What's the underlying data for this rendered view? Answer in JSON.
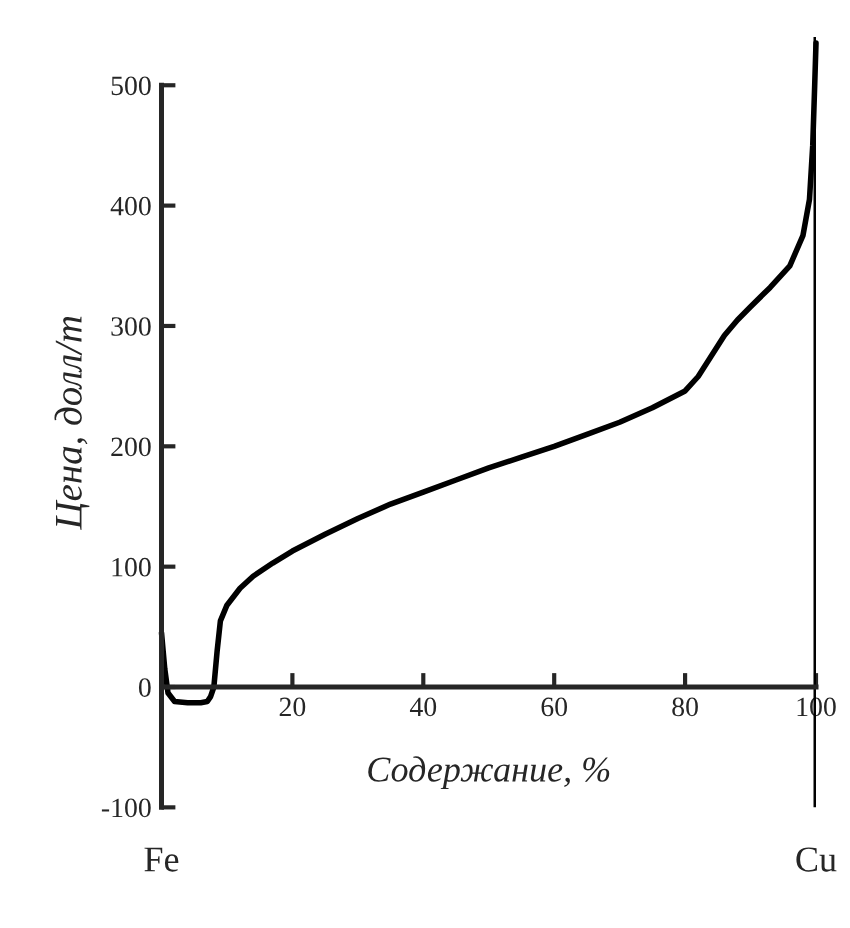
{
  "chart_data": {
    "type": "line",
    "xlabel": "Содержание, %",
    "ylabel": "Цена, долл/т",
    "x": [
      0,
      0.5,
      1,
      2,
      4,
      6,
      7,
      7.5,
      8,
      8.5,
      9,
      10,
      12,
      14,
      17,
      20,
      25,
      30,
      35,
      40,
      45,
      50,
      55,
      60,
      65,
      70,
      75,
      80,
      82,
      84,
      86,
      88,
      90,
      93,
      96,
      98,
      99,
      99.5,
      99.8,
      100
    ],
    "series": [
      {
        "color": "#000000",
        "values": [
          45,
          15,
          -5,
          -12,
          -13,
          -13,
          -12,
          -8,
          0,
          30,
          55,
          68,
          82,
          92,
          103,
          113,
          127,
          140,
          152,
          162,
          172,
          182,
          191,
          200,
          210,
          220,
          232,
          246,
          258,
          275,
          292,
          305,
          316,
          332,
          350,
          375,
          405,
          450,
          500,
          535
        ]
      }
    ],
    "xlim": [
      0,
      100
    ],
    "ylim": [
      -100,
      540
    ],
    "xticks": [
      20,
      40,
      60,
      80,
      100
    ],
    "yticks": [
      -100,
      0,
      100,
      200,
      300,
      400,
      500
    ],
    "ref_lines": [
      {
        "axis": "x",
        "value": 100,
        "color": "#000000"
      }
    ],
    "annotations": [
      "Fe",
      "Cu"
    ],
    "grid": false,
    "legend": false,
    "marker": "none",
    "line_style": "solid"
  }
}
